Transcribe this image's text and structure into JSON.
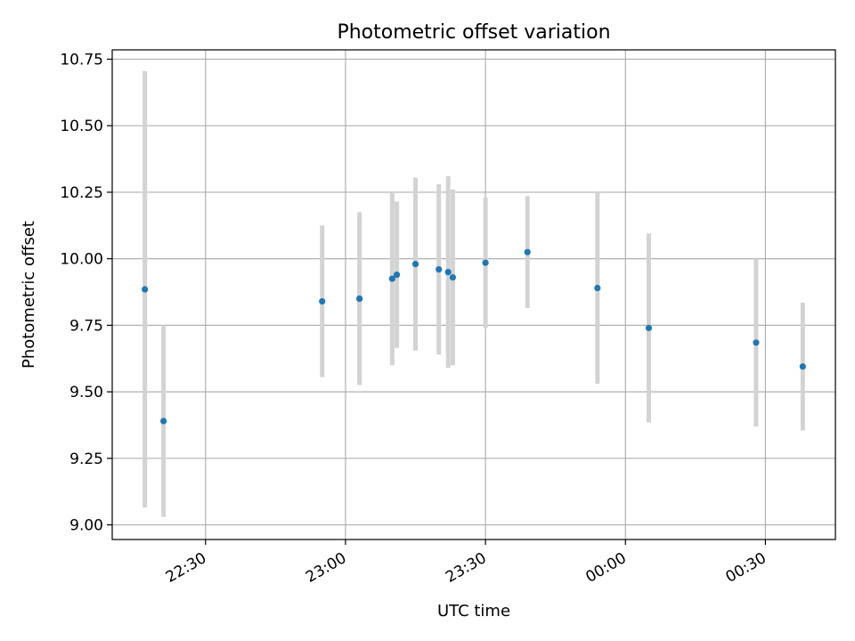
{
  "chart_data": {
    "type": "scatter",
    "title": "Photometric offset variation",
    "xlabel": "UTC time",
    "ylabel": "Photometric offset",
    "x_axis": {
      "kind": "time",
      "range": [
        "22:10",
        "00:45"
      ],
      "ticks": [
        "22:30",
        "23:00",
        "23:30",
        "00:00",
        "00:30"
      ],
      "tick_label_rotation": 30
    },
    "y_axis": {
      "range": [
        8.945,
        10.785
      ],
      "ticks": [
        "9.00",
        "9.25",
        "9.50",
        "9.75",
        "10.00",
        "10.25",
        "10.50",
        "10.75"
      ]
    },
    "grid": true,
    "series": [
      {
        "marker_color": "#1f77b4",
        "errorbar_color": "#d3d3d3",
        "points": [
          {
            "x": "22:17",
            "y": 9.885,
            "err": 0.82
          },
          {
            "x": "22:21",
            "y": 9.39,
            "err": 0.36
          },
          {
            "x": "22:55",
            "y": 9.84,
            "err": 0.285
          },
          {
            "x": "23:03",
            "y": 9.85,
            "err": 0.325
          },
          {
            "x": "23:03",
            "y": 9.85,
            "err": 0.3
          },
          {
            "x": "23:10",
            "y": 9.925,
            "err": 0.325
          },
          {
            "x": "23:11",
            "y": 9.94,
            "err": 0.275
          },
          {
            "x": "23:15",
            "y": 9.98,
            "err": 0.325
          },
          {
            "x": "23:20",
            "y": 9.96,
            "err": 0.32
          },
          {
            "x": "23:22",
            "y": 9.95,
            "err": 0.36
          },
          {
            "x": "23:23",
            "y": 9.93,
            "err": 0.33
          },
          {
            "x": "23:30",
            "y": 9.985,
            "err": 0.245
          },
          {
            "x": "23:39",
            "y": 10.025,
            "err": 0.21
          },
          {
            "x": "23:54",
            "y": 9.89,
            "err": 0.36
          },
          {
            "x": "00:05",
            "y": 9.74,
            "err": 0.355
          },
          {
            "x": "00:28",
            "y": 9.685,
            "err": 0.315
          },
          {
            "x": "00:38",
            "y": 9.595,
            "err": 0.24
          }
        ]
      }
    ]
  }
}
